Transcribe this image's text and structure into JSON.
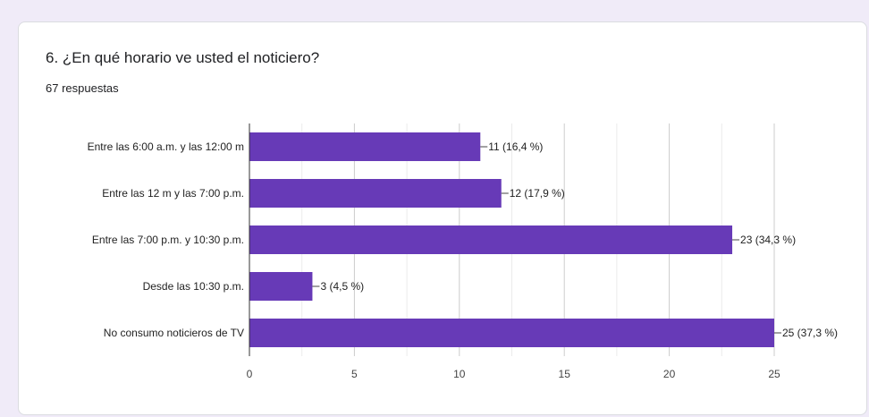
{
  "question": {
    "title": "6. ¿En qué horario ve usted el noticiero?",
    "responses": "67 respuestas"
  },
  "chart_data": {
    "type": "bar",
    "orientation": "horizontal",
    "categories": [
      "Entre las 6:00 a.m. y las 12:00 m",
      "Entre las 12 m y las 7:00 p.m.",
      "Entre las 7:00 p.m. y 10:30 p.m.",
      "Desde las 10:30 p.m.",
      "No consumo noticieros de TV"
    ],
    "values": [
      11,
      12,
      23,
      3,
      25
    ],
    "data_labels": [
      "11 (16,4 %)",
      "12 (17,9 %)",
      "23 (34,3 %)",
      "3 (4,5 %)",
      "25 (37,3 %)"
    ],
    "xlim": [
      0,
      25
    ],
    "xticks": [
      0,
      5,
      10,
      15,
      20,
      25
    ],
    "grid": true,
    "bar_color": "#673ab7"
  }
}
